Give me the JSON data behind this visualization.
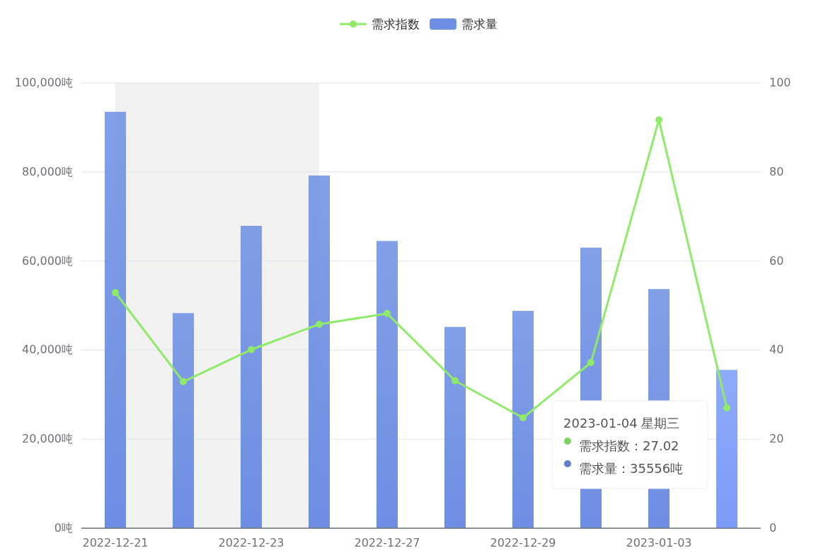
{
  "chart_data": {
    "type": "bar",
    "categories": [
      "2022-12-21",
      null,
      "2022-12-23",
      null,
      "2022-12-27",
      null,
      "2022-12-29",
      null,
      "2023-01-03",
      null
    ],
    "series": [
      {
        "name": "需求指数",
        "type": "line",
        "axis": "y2",
        "color": "#8fea6a",
        "marker": "circle",
        "values": [
          52.9,
          32.9,
          40.1,
          45.8,
          48.2,
          33.1,
          24.8,
          37.2,
          91.7,
          27.02
        ]
      },
      {
        "name": "需求量",
        "color": "#6d8ee3",
        "colors": [
          "#6d8ee3",
          "#6d8ee3",
          "#6d8ee3",
          "#6d8ee3",
          "#6d8ee3",
          "#6d8ee3",
          "#6d8ee3",
          "#6d8ee3",
          "#6d8ee3",
          "#7b9bf8"
        ],
        "values": [
          93500,
          48300,
          67900,
          79200,
          64500,
          45200,
          48800,
          63000,
          53700,
          35556
        ]
      }
    ],
    "ylim": [
      0,
      100000
    ],
    "yticks": [
      {
        "value": 0,
        "label": "0吨"
      },
      {
        "value": 20000,
        "label": "20,000吨"
      },
      {
        "value": 40000,
        "label": "40,000吨"
      },
      {
        "value": 60000,
        "label": "60,000吨"
      },
      {
        "value": 80000,
        "label": "80,000吨"
      },
      {
        "value": 100000,
        "label": "100,000吨"
      }
    ],
    "y2lim": [
      0,
      100
    ],
    "y2ticks": [
      0,
      20,
      40,
      60,
      80,
      100
    ],
    "annotations": [
      "2023-01-04 星期三",
      "需求指数：27.02",
      "需求量：35556吨"
    ],
    "grid": "y",
    "legend": "top"
  }
}
